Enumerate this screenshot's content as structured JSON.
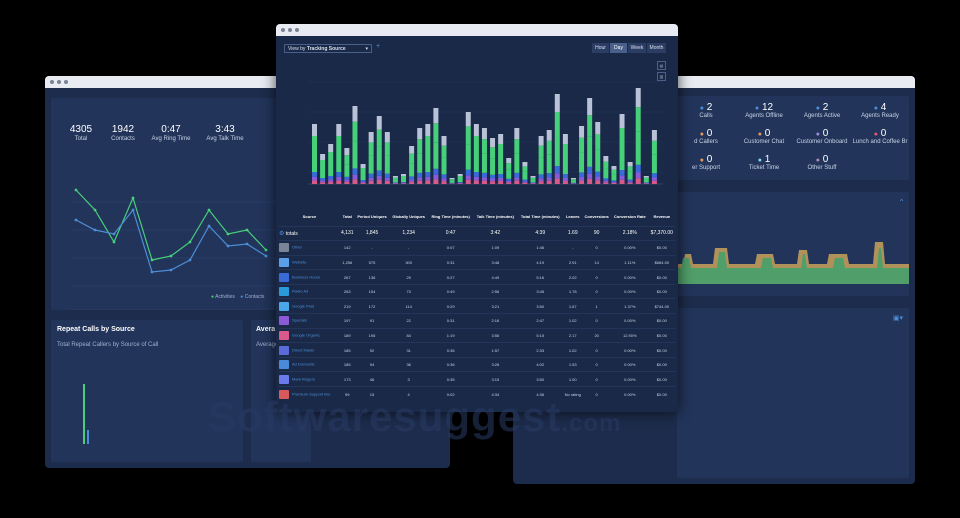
{
  "left_window": {
    "stats": [
      {
        "value": "4305",
        "label": "Total"
      },
      {
        "value": "1942",
        "label": "Contacts"
      },
      {
        "value": "0:47",
        "label": "Avg Ring Time"
      },
      {
        "value": "3:43",
        "label": "Avg Talk Time"
      }
    ],
    "legend": [
      "Activities",
      "Contacts"
    ],
    "repeat_panel_title": "Repeat Calls by Source",
    "repeat_panel_subtitle": "Total Repeat Callers by Source of Call",
    "avg_panel_title": "Avera",
    "avg_panel_subtitle": "Average"
  },
  "right_window": {
    "agents": [
      {
        "value": "2",
        "label": "Calls",
        "color": "#4c8ed8"
      },
      {
        "value": "12",
        "label": "Agents Offline",
        "color": "#4c8ed8"
      },
      {
        "value": "2",
        "label": "Agents Active",
        "color": "#4c8ed8"
      },
      {
        "value": "4",
        "label": "Agents Ready",
        "color": "#4c8ed8"
      },
      {
        "value": "0",
        "label": "d Callers",
        "color": "#e39a5a"
      },
      {
        "value": "0",
        "label": "Customer Chat",
        "color": "#e39a5a"
      },
      {
        "value": "0",
        "label": "Customer Onboard",
        "color": "#a08bd8"
      },
      {
        "value": "0",
        "label": "Lunch and Coffee Br",
        "color": "#e35a6a"
      },
      {
        "value": "0",
        "label": "er Support",
        "color": "#e39a5a"
      },
      {
        "value": "1",
        "label": "Ticket Time",
        "color": "#7ad8e8"
      },
      {
        "value": "0",
        "label": "Other Stuff",
        "color": "#b08ab0"
      }
    ]
  },
  "center_window": {
    "view_by_label": "View by",
    "view_by_value": "Tracking Source",
    "periods": [
      "Hour",
      "Day",
      "Week",
      "Month"
    ],
    "active_period": "Day",
    "bar_labels": [
      "191",
      "143",
      "237",
      "163",
      "172",
      "190",
      "196",
      "184",
      "153",
      "224",
      "160",
      "208",
      "182",
      "181",
      "168",
      "157",
      "181",
      "200",
      "217",
      "184",
      "160",
      "192",
      "152",
      "300",
      "181"
    ],
    "table": {
      "headers": [
        "Source",
        "Total",
        "Period Uniques",
        "Globally Uniques",
        "Ring Time (minutes)",
        "Talk Time (minutes)",
        "Total Time (minutes)",
        "Leaves",
        "Conversions",
        "Conversion Rate",
        "Revenue"
      ],
      "totals": {
        "label": "totals",
        "values": [
          "4,131",
          "1,845",
          "1,234",
          "0:47",
          "3:42",
          "4:39",
          "1.69",
          "90",
          "2.18%",
          "$7,370.00"
        ]
      },
      "rows": [
        {
          "name": "Other",
          "color": "#7a8497",
          "values": [
            "142",
            "-",
            "-",
            "0:07",
            "1:09",
            "1:46",
            "-",
            "0",
            "0.00%",
            "$0.00"
          ]
        },
        {
          "name": "Website",
          "color": "#5aa0e8",
          "values": [
            "1,256",
            "575",
            "300",
            "0:31",
            "3:48",
            "4:19",
            "2.91",
            "14",
            "1.11%",
            "$684.00"
          ]
        },
        {
          "name": "Business Hours",
          "color": "#3a6ad8",
          "values": [
            "267",
            "136",
            "29",
            "0:27",
            "4:49",
            "5:16",
            "2.02",
            "0",
            "0.00%",
            "$0.00"
          ]
        },
        {
          "name": "Radio Ad",
          "color": "#2a9ad8",
          "values": [
            "263",
            "154",
            "73",
            "0:49",
            "2:56",
            "3:45",
            "1.78",
            "0",
            "0.00%",
            "$0.00"
          ]
        },
        {
          "name": "Google Paid",
          "color": "#4aa8e8",
          "values": [
            "219",
            "172",
            "114",
            "0:29",
            "3:21",
            "3:50",
            "1.67",
            "1",
            "1.37%",
            "$744.00"
          ]
        },
        {
          "name": "Specials",
          "color": "#8a5ad8",
          "values": [
            "197",
            "91",
            "22",
            "0:31",
            "2:16",
            "2:47",
            "1.02",
            "0",
            "0.00%",
            "$0.00"
          ]
        },
        {
          "name": "Google Organic",
          "color": "#d85a8a",
          "values": [
            "189",
            "195",
            "84",
            "1:19",
            "3:56",
            "5:15",
            "2.17",
            "20",
            "12.90%",
            "$0.00"
          ]
        },
        {
          "name": "Direct Mailer",
          "color": "#5a6ad8",
          "values": [
            "185",
            "92",
            "31",
            "0:36",
            "1:57",
            "2:33",
            "1.02",
            "0",
            "0.00%",
            "$0.00"
          ]
        },
        {
          "name": "Ad Domestic",
          "color": "#4a8ad8",
          "values": [
            "185",
            "94",
            "36",
            "0:36",
            "3:26",
            "4:02",
            "1.53",
            "0",
            "0.00%",
            "$0.00"
          ]
        },
        {
          "name": "Mark Rogers",
          "color": "#6a7ae8",
          "values": [
            "173",
            "46",
            "3",
            "0:35",
            "3:15",
            "3:50",
            "1.00",
            "0",
            "0.00%",
            "$0.00"
          ]
        },
        {
          "name": "Premium Support line",
          "color": "#d85a5a",
          "values": [
            "99",
            "15",
            "4",
            "0:02",
            "4:34",
            "4:36",
            "No rating",
            "0",
            "0.00%",
            "$0.00"
          ]
        }
      ],
      "footer": [
        "0:47",
        "3:42",
        "4:39"
      ]
    }
  },
  "watermark": {
    "main": "Softwaresuggest",
    "suffix": ".com"
  }
}
